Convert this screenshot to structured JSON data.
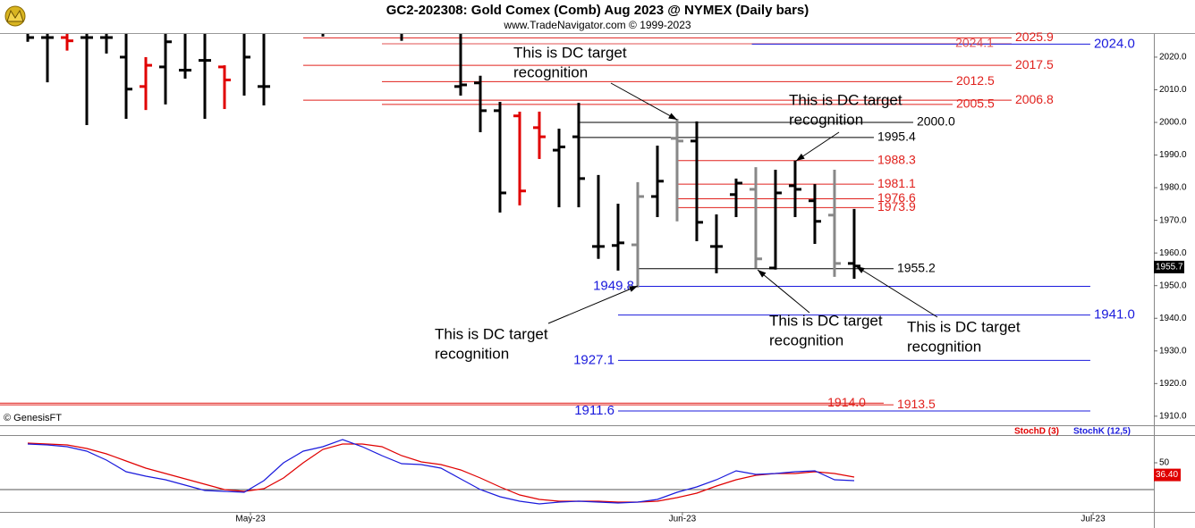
{
  "chart_data": [
    {
      "type": "ohlc",
      "title": "GC2-202308:  Gold Comex (Comb) Aug 2023 @ NYMEX  (Daily bars)",
      "subtitle": "www.TradeNavigator.com © 1999-2023",
      "credit": "© GenesisFT",
      "x": [
        0,
        1,
        2,
        3,
        4,
        5,
        6,
        7,
        8,
        9,
        10,
        11,
        12,
        13,
        14,
        15,
        16,
        17,
        18,
        19,
        20,
        21,
        22,
        23,
        24,
        25,
        26,
        27,
        28,
        29,
        30,
        31,
        32,
        33,
        34,
        35,
        36,
        37,
        38,
        39,
        40,
        41,
        42
      ],
      "open": [
        2028,
        2026,
        2026,
        2026,
        2026,
        2020,
        2011,
        2017,
        2016,
        2019,
        2017,
        2030,
        2011,
        null,
        null,
        2028,
        null,
        null,
        null,
        2028,
        null,
        null,
        2011,
        2012.1,
        2003.6,
        2002,
        1998.4,
        1991.5,
        1995.6,
        1962,
        1962.3,
        1962.5,
        1977.3,
        1995.1,
        1994.3,
        1962,
        1977.9,
        1979.5,
        1955.4,
        1980.6,
        1976,
        1971.6,
        1956.8
      ],
      "high": [
        2030,
        2030,
        2030,
        2030,
        2030,
        2030,
        2020,
        2030,
        2030,
        2030,
        2017.5,
        2030,
        2030,
        null,
        null,
        2030,
        null,
        null,
        null,
        2030,
        null,
        null,
        2030,
        2014.3,
        2006.3,
        2003.3,
        2003.3,
        1998.1,
        2006,
        1983.9,
        1975.1,
        1981.7,
        1992.9,
        2001.1,
        2000.3,
        1971.8,
        1982.8,
        1986.3,
        1985.5,
        1988.3,
        1981.1,
        1985.5,
        1973.5
      ],
      "low": [
        2024.7,
        2012.3,
        2022,
        1999.2,
        2021.1,
        2001.1,
        2003.8,
        2005.5,
        2013.4,
        2001.1,
        2004.1,
        2008.2,
        2005.2,
        null,
        null,
        2026.3,
        null,
        null,
        null,
        2025,
        null,
        null,
        2008.2,
        1997,
        1972.4,
        1974.6,
        1988.8,
        1974,
        1974,
        1958.2,
        1954.6,
        1949.4,
        1971,
        1969.7,
        1963.6,
        1953.8,
        1971,
        1955.4,
        1954.9,
        1971,
        1962.8,
        1952.7,
        1952.1
      ],
      "close": [
        2026,
        2026,
        2025,
        2026,
        2026,
        2010.2,
        2017.5,
        2024.7,
        2016,
        2019,
        2013,
        2020,
        2011,
        null,
        null,
        2028,
        null,
        null,
        null,
        2028,
        null,
        null,
        2011.5,
        2003.6,
        1978.4,
        1979,
        1995.6,
        1992.5,
        1982.8,
        1962,
        1963.1,
        1977.3,
        1982,
        1994.3,
        1969.4,
        1962,
        1981.4,
        1958.2,
        1978.4,
        1979.5,
        1969.7,
        1956.8,
        1956
      ],
      "bar_colors": [
        "#000",
        "#000",
        "#e00000",
        "#000",
        "#000",
        "#000",
        "#e00000",
        "#000",
        "#000",
        "#000",
        "#e00000",
        "#000",
        "#000",
        null,
        null,
        "#000",
        null,
        null,
        null,
        "#000",
        null,
        null,
        "#000",
        "#000",
        "#000",
        "#e00000",
        "#e00000",
        "#000",
        "#000",
        "#000",
        "#000",
        "#888",
        "#000",
        "#888",
        "#000",
        "#000",
        "#000",
        "#888",
        "#000",
        "#000",
        "#000",
        "#888",
        "#000"
      ],
      "xlim": [
        -1.41,
        57.23
      ],
      "ylim": [
        1907.5,
        2027.1
      ],
      "yticks": [
        {
          "value": 1910,
          "label": "1910.0"
        },
        {
          "value": 1920,
          "label": "1920.0"
        },
        {
          "value": 1930,
          "label": "1930.0"
        },
        {
          "value": 1940,
          "label": "1940.0"
        },
        {
          "value": 1950,
          "label": "1950.0"
        },
        {
          "value": 1960,
          "label": "1960.0"
        },
        {
          "value": 1970,
          "label": "1970.0"
        },
        {
          "value": 1980,
          "label": "1980.0"
        },
        {
          "value": 1990,
          "label": "1990.0"
        },
        {
          "value": 2000,
          "label": "2000.0"
        },
        {
          "value": 2010,
          "label": "2010.0"
        },
        {
          "value": 2020,
          "label": "2020.0"
        }
      ],
      "last_value": 1955.7,
      "levels": [
        {
          "value": 2025.9,
          "label": "2025.9",
          "color": "#e0201c",
          "from": 14,
          "to": 50,
          "label_side": "right"
        },
        {
          "value": 2024.1,
          "label": "2024.1",
          "color": "#e05050",
          "from": 18,
          "to": 50,
          "label_side": "inside"
        },
        {
          "value": 2024.0,
          "label": "2024.0",
          "color": "#1a1adc",
          "from": 36.8,
          "to": 54,
          "label_side": "right"
        },
        {
          "value": 2017.5,
          "label": "2017.5",
          "color": "#e0201c",
          "from": 14,
          "to": 50,
          "label_side": "right"
        },
        {
          "value": 2012.5,
          "label": "2012.5",
          "color": "#e0201c",
          "from": 18,
          "to": 47,
          "label_side": "right"
        },
        {
          "value": 2006.8,
          "label": "2006.8",
          "color": "#e0201c",
          "from": 14,
          "to": 50,
          "label_side": "right"
        },
        {
          "value": 2005.5,
          "label": "2005.5",
          "color": "#e0201c",
          "from": 18,
          "to": 47,
          "label_side": "right"
        },
        {
          "value": 2000.0,
          "label": "2000.0",
          "color": "#000",
          "from": 28,
          "to": 45,
          "label_side": "right"
        },
        {
          "value": 1995.4,
          "label": "1995.4",
          "color": "#000",
          "from": 28,
          "to": 43,
          "label_side": "right"
        },
        {
          "value": 1988.3,
          "label": "1988.3",
          "color": "#e0201c",
          "from": 33,
          "to": 43,
          "label_side": "right"
        },
        {
          "value": 1981.1,
          "label": "1981.1",
          "color": "#e0201c",
          "from": 33,
          "to": 43,
          "label_side": "right"
        },
        {
          "value": 1976.6,
          "label": "1976.6",
          "color": "#e0201c",
          "from": 33,
          "to": 43,
          "label_side": "right"
        },
        {
          "value": 1973.9,
          "label": "1973.9",
          "color": "#e0201c",
          "from": 33,
          "to": 43,
          "label_side": "right"
        },
        {
          "value": 1955.2,
          "label": "1955.2",
          "color": "#000",
          "from": 31,
          "to": 44,
          "label_side": "right"
        },
        {
          "value": 1949.8,
          "label": "1949.8",
          "color": "#1a1adc",
          "from": 31,
          "to": 54,
          "label_side": "left"
        },
        {
          "value": 1941.0,
          "label": "1941.0",
          "color": "#1a1adc",
          "from": 30,
          "to": 54,
          "label_side": "right"
        },
        {
          "value": 1927.1,
          "label": "1927.1",
          "color": "#1a1adc",
          "from": 30,
          "to": 54,
          "label_side": "left"
        },
        {
          "value": 1914.0,
          "label": "1914.0",
          "color": "#e0201c",
          "from": -1.41,
          "to": 43.5,
          "label_side": "inside"
        },
        {
          "value": 1913.5,
          "label": "1913.5",
          "color": "#e0201c",
          "from": -1.41,
          "to": 44,
          "label_side": "right"
        },
        {
          "value": 1911.6,
          "label": "1911.6",
          "color": "#1a1adc",
          "from": 30,
          "to": 54,
          "label_side": "left"
        }
      ],
      "annotations": [
        {
          "lines": [
            "This is DC target",
            "recognition"
          ]
        },
        {
          "lines": [
            "This is DC target",
            "recognition"
          ]
        },
        {
          "lines": [
            "This is DC target",
            "recognition"
          ]
        },
        {
          "lines": [
            "This is DC target",
            "recognition"
          ]
        },
        {
          "lines": [
            "This is DC target",
            "recognition"
          ]
        }
      ]
    },
    {
      "type": "line",
      "x": [
        0,
        1,
        2,
        3,
        4,
        5,
        6,
        7,
        8,
        9,
        10,
        11,
        12,
        13,
        14,
        15,
        16,
        17,
        18,
        19,
        20,
        21,
        22,
        23,
        24,
        25,
        26,
        27,
        28,
        29,
        30,
        31,
        32,
        33,
        34,
        35,
        36,
        37,
        38,
        39,
        40,
        41,
        42
      ],
      "series": [
        {
          "name": "StochD (3)",
          "color": "#e00000",
          "values": [
            72,
            71,
            70,
            66,
            60,
            52,
            44,
            38,
            32,
            26,
            20,
            18,
            21,
            33,
            50,
            65,
            71,
            71,
            68,
            58,
            51,
            48,
            42,
            33,
            23,
            14,
            9,
            7,
            7,
            7,
            6,
            6,
            7,
            11,
            16,
            24,
            31,
            36,
            38,
            38,
            40,
            38,
            34
          ]
        },
        {
          "name": "StochK (12,5)",
          "color": "#1a1adc",
          "values": [
            71,
            70,
            68,
            63,
            53,
            40,
            35,
            31,
            25,
            19,
            18,
            17,
            30,
            50,
            63,
            68,
            76,
            68,
            58,
            49,
            48,
            44,
            32,
            20,
            12,
            7,
            4,
            6,
            7,
            6,
            5,
            6,
            9,
            17,
            23,
            31,
            41,
            37,
            38,
            40,
            41,
            31,
            30
          ]
        }
      ],
      "xlim": [
        -1.41,
        57.23
      ],
      "ylim": [
        -5,
        80
      ],
      "yticks": [
        50
      ],
      "hline": 20,
      "last_value": {
        "value": 36.4,
        "label": "36.40"
      },
      "xticks": [
        {
          "value": 11.32,
          "label": "May-23"
        },
        {
          "value": 33.27,
          "label": "Jun-23"
        },
        {
          "value": 54.14,
          "label": "Jul-23"
        }
      ]
    }
  ]
}
